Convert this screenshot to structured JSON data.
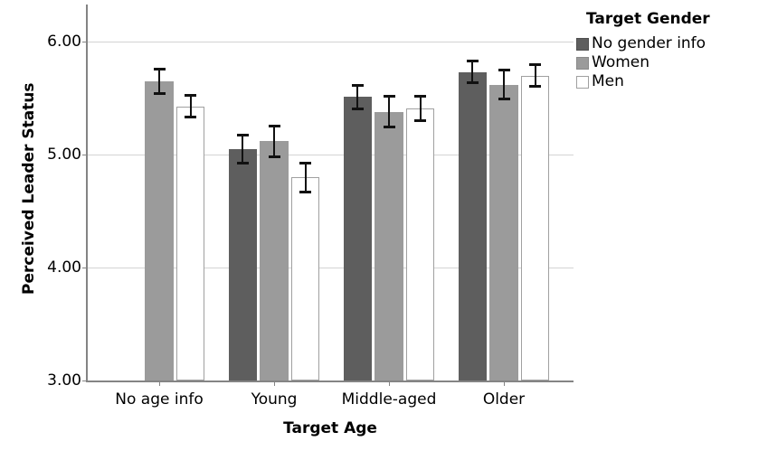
{
  "chart_data": {
    "type": "bar",
    "title": "",
    "xlabel": "Target Age",
    "ylabel": "Perceived Leader Status",
    "ylim": [
      3.0,
      6.3
    ],
    "yticks": [
      3.0,
      4.0,
      5.0,
      6.0
    ],
    "ytick_labels": [
      "3.00",
      "4.00",
      "5.00",
      "6.00"
    ],
    "categories": [
      "No age info",
      "Young",
      "Middle-aged",
      "Older"
    ],
    "legend_title": "Target Gender",
    "legend_position": "top-right",
    "grid": "horizontal-major-only",
    "error_bars": true,
    "series": [
      {
        "name": "No gender info",
        "fill": "#5e5e5e",
        "border": "#4f4f4f",
        "values": [
          null,
          5.05,
          5.51,
          5.73
        ],
        "errors": [
          null,
          0.13,
          0.11,
          0.1
        ]
      },
      {
        "name": "Women",
        "fill": "#9b9b9b",
        "border": "#8a8a8a",
        "values": [
          5.65,
          5.12,
          5.38,
          5.62
        ],
        "errors": [
          0.11,
          0.14,
          0.14,
          0.13
        ]
      },
      {
        "name": "Men",
        "fill": "#ffffff",
        "border": "#a0a0a0",
        "values": [
          5.43,
          4.8,
          5.41,
          5.7
        ],
        "errors": [
          0.1,
          0.13,
          0.11,
          0.1
        ]
      }
    ]
  },
  "colors": {
    "background": "#ffffff",
    "axis": "#848484",
    "gridline": "#d3d3d3",
    "error_bar": "#111111",
    "text": "#000000"
  }
}
